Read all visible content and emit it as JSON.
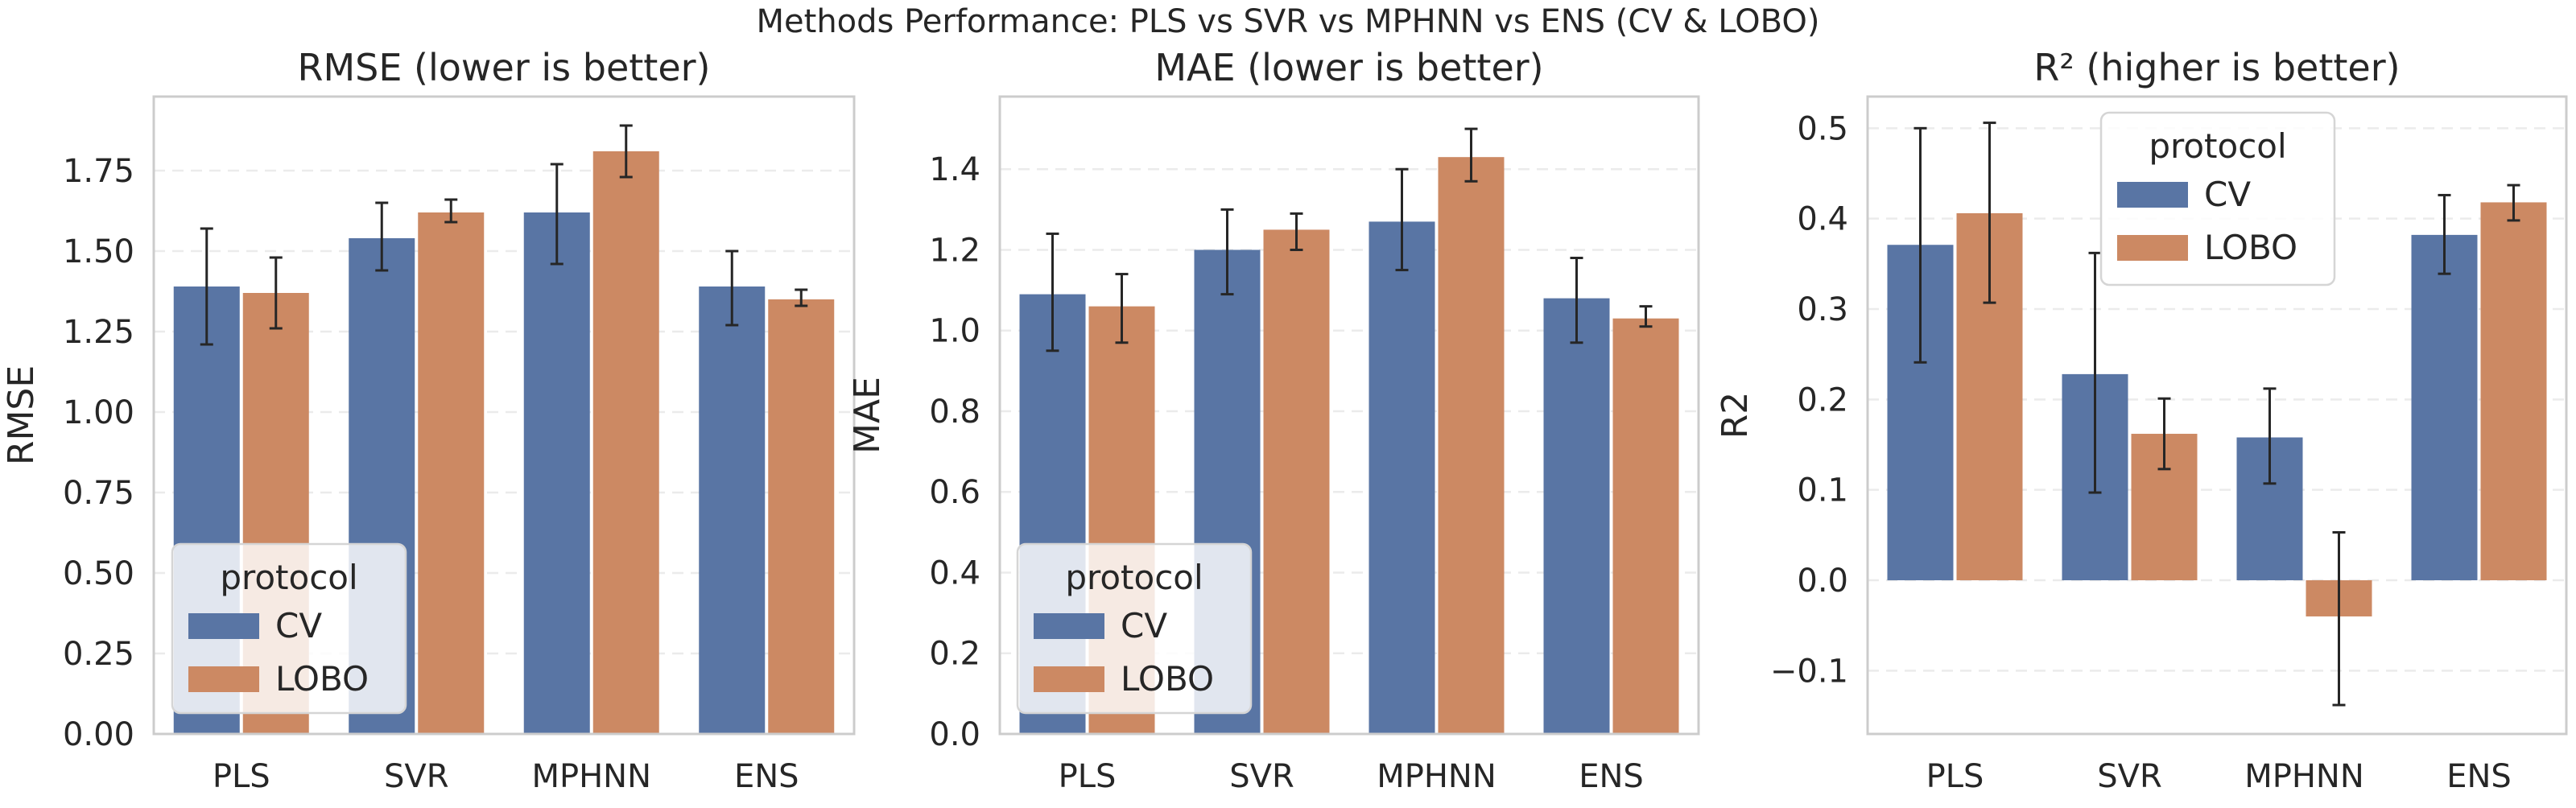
{
  "suptitle": "Methods Performance: PLS vs SVR vs MPHNN vs ENS (CV & LOBO)",
  "colors": {
    "CV": "#5975a4",
    "LOBO": "#cc8963",
    "frame": "#cccccc",
    "grid": "#ebebeb",
    "error_bar": "#262626"
  },
  "chart_data": [
    {
      "type": "bar",
      "title": "RMSE (lower is better)",
      "xlabel": "",
      "ylabel": "RMSE",
      "categories": [
        "PLS",
        "SVR",
        "MPHNN",
        "ENS"
      ],
      "ylim": [
        0,
        1.98
      ],
      "yticks": [
        0.0,
        0.25,
        0.5,
        0.75,
        1.0,
        1.25,
        1.5,
        1.75
      ],
      "ytick_labels": [
        "0.00",
        "0.25",
        "0.50",
        "0.75",
        "1.00",
        "1.25",
        "1.50",
        "1.75"
      ],
      "grid": true,
      "legend": {
        "title": "protocol",
        "position": "lower-left"
      },
      "series": [
        {
          "name": "CV",
          "values": [
            1.39,
            1.54,
            1.62,
            1.39
          ],
          "err_low": [
            1.21,
            1.44,
            1.46,
            1.27
          ],
          "err_high": [
            1.57,
            1.65,
            1.77,
            1.5
          ]
        },
        {
          "name": "LOBO",
          "values": [
            1.37,
            1.62,
            1.81,
            1.35
          ],
          "err_low": [
            1.26,
            1.59,
            1.73,
            1.33
          ],
          "err_high": [
            1.48,
            1.66,
            1.89,
            1.38
          ]
        }
      ]
    },
    {
      "type": "bar",
      "title": "MAE (lower is better)",
      "xlabel": "",
      "ylabel": "MAE",
      "categories": [
        "PLS",
        "SVR",
        "MPHNN",
        "ENS"
      ],
      "ylim": [
        0,
        1.58
      ],
      "yticks": [
        0.0,
        0.2,
        0.4,
        0.6,
        0.8,
        1.0,
        1.2,
        1.4
      ],
      "ytick_labels": [
        "0.0",
        "0.2",
        "0.4",
        "0.6",
        "0.8",
        "1.0",
        "1.2",
        "1.4"
      ],
      "grid": true,
      "legend": {
        "title": "protocol",
        "position": "lower-left"
      },
      "series": [
        {
          "name": "CV",
          "values": [
            1.09,
            1.2,
            1.27,
            1.08
          ],
          "err_low": [
            0.95,
            1.09,
            1.15,
            0.97
          ],
          "err_high": [
            1.24,
            1.3,
            1.4,
            1.18
          ]
        },
        {
          "name": "LOBO",
          "values": [
            1.06,
            1.25,
            1.43,
            1.03
          ],
          "err_low": [
            0.97,
            1.2,
            1.37,
            1.01
          ],
          "err_high": [
            1.14,
            1.29,
            1.5,
            1.06
          ]
        }
      ]
    },
    {
      "type": "bar",
      "title": "R² (higher is better)",
      "xlabel": "",
      "ylabel": "R2",
      "categories": [
        "PLS",
        "SVR",
        "MPHNN",
        "ENS"
      ],
      "ylim": [
        -0.17,
        0.535
      ],
      "yticks": [
        -0.1,
        0.0,
        0.1,
        0.2,
        0.3,
        0.4,
        0.5
      ],
      "ytick_labels": [
        "−0.1",
        "0.0",
        "0.1",
        "0.2",
        "0.3",
        "0.4",
        "0.5"
      ],
      "grid": true,
      "legend": {
        "title": "protocol",
        "position": "upper-center"
      },
      "series": [
        {
          "name": "CV",
          "values": [
            0.371,
            0.228,
            0.158,
            0.382
          ],
          "err_low": [
            0.241,
            0.097,
            0.107,
            0.339
          ],
          "err_high": [
            0.5,
            0.362,
            0.212,
            0.426
          ]
        },
        {
          "name": "LOBO",
          "values": [
            0.406,
            0.162,
            -0.04,
            0.418
          ],
          "err_low": [
            0.307,
            0.123,
            -0.138,
            0.398
          ],
          "err_high": [
            0.506,
            0.201,
            0.053,
            0.437
          ]
        }
      ]
    }
  ]
}
